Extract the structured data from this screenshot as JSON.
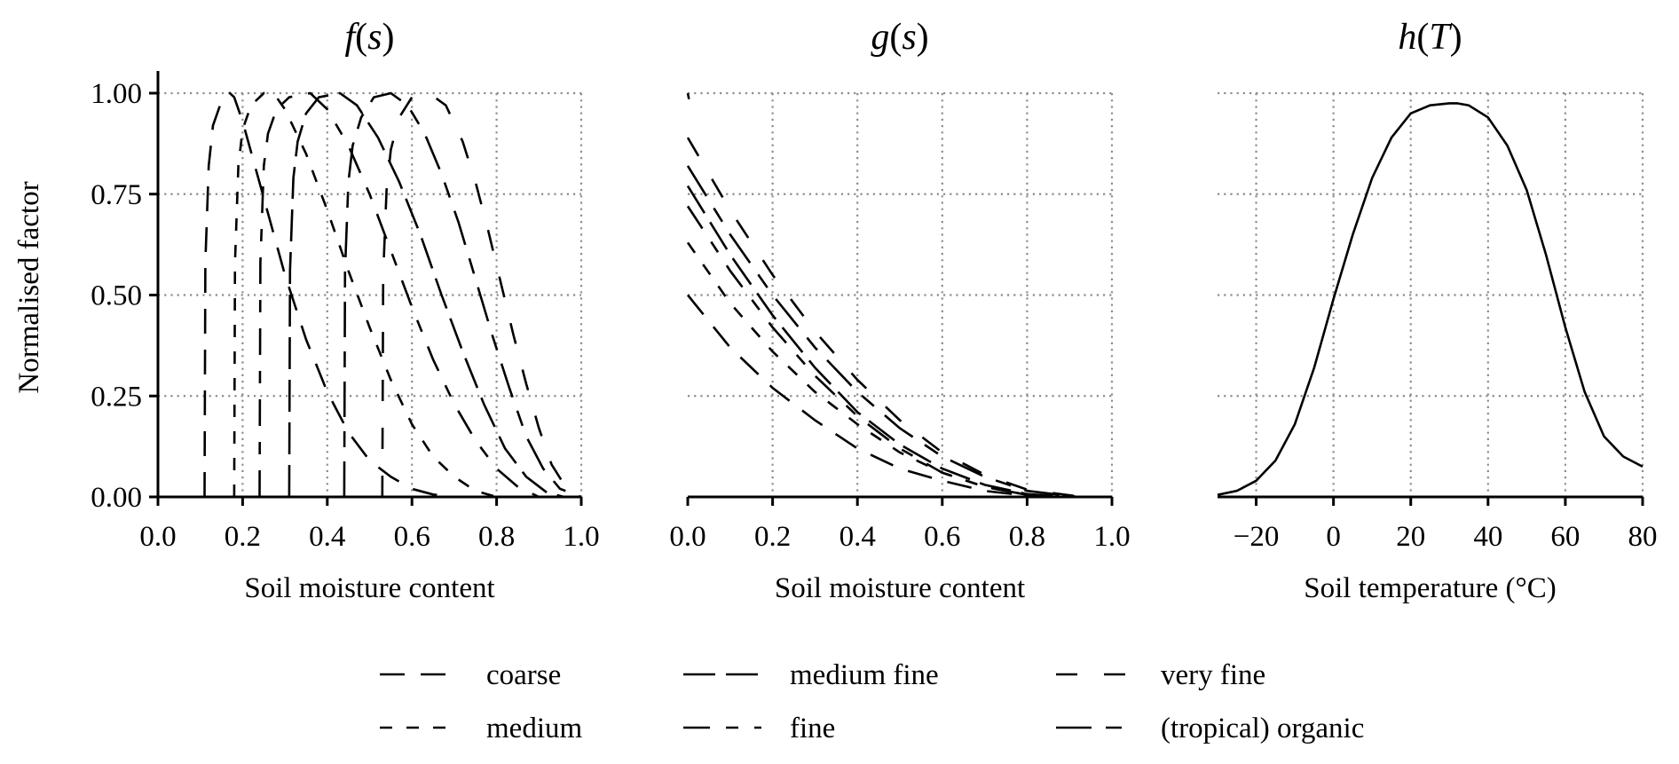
{
  "figure": {
    "y_axis_label": "Normalised factor",
    "legend": {
      "entries": [
        {
          "label": "coarse",
          "dash": "28 18"
        },
        {
          "label": "medium fine",
          "dash": "36 12"
        },
        {
          "label": "very fine",
          "dash": "24 30"
        },
        {
          "label": "medium",
          "dash": "14 16"
        },
        {
          "label": "fine",
          "dash": "30 18 14 18"
        },
        {
          "label": "(tropical) organic",
          "dash": "40 16 18 16"
        }
      ]
    }
  },
  "chart_data": [
    {
      "type": "line",
      "title": "f(s)",
      "title_func": "f",
      "title_arg": "s",
      "xlabel": "Soil moisture content",
      "ylabel": "Normalised factor",
      "xlim": [
        0.0,
        1.0
      ],
      "ylim": [
        0.0,
        1.0
      ],
      "xticks": [
        "0.0",
        "0.2",
        "0.4",
        "0.6",
        "0.8",
        "1.0"
      ],
      "yticks": [
        "0.00",
        "0.25",
        "0.50",
        "0.75",
        "1.00"
      ],
      "grid": true,
      "series": [
        {
          "name": "coarse",
          "dash": "28 18",
          "x": [
            0.11,
            0.112,
            0.12,
            0.13,
            0.15,
            0.17,
            0.18,
            0.2,
            0.25,
            0.3,
            0.35,
            0.4,
            0.45,
            0.5,
            0.55,
            0.6,
            0.65,
            0.7
          ],
          "y": [
            0.0,
            0.58,
            0.82,
            0.92,
            0.98,
            1.0,
            0.99,
            0.93,
            0.74,
            0.55,
            0.39,
            0.26,
            0.16,
            0.09,
            0.05,
            0.02,
            0.006,
            0.0
          ]
        },
        {
          "name": "medium",
          "dash": "14 16",
          "x": [
            0.18,
            0.182,
            0.19,
            0.2,
            0.22,
            0.25,
            0.28,
            0.3,
            0.35,
            0.4,
            0.45,
            0.5,
            0.55,
            0.6,
            0.65,
            0.7,
            0.75,
            0.8
          ],
          "y": [
            0.0,
            0.58,
            0.82,
            0.91,
            0.97,
            1.0,
            0.99,
            0.96,
            0.85,
            0.71,
            0.56,
            0.42,
            0.29,
            0.18,
            0.1,
            0.05,
            0.015,
            0.0
          ]
        },
        {
          "name": "fine",
          "dash": "30 18 14 18",
          "x": [
            0.24,
            0.242,
            0.25,
            0.26,
            0.28,
            0.31,
            0.36,
            0.4,
            0.45,
            0.5,
            0.55,
            0.6,
            0.65,
            0.7,
            0.75,
            0.8,
            0.85,
            0.9
          ],
          "y": [
            0.0,
            0.58,
            0.82,
            0.9,
            0.96,
            0.99,
            1.0,
            0.96,
            0.87,
            0.75,
            0.61,
            0.47,
            0.34,
            0.23,
            0.14,
            0.07,
            0.025,
            0.0
          ]
        },
        {
          "name": "medium fine",
          "dash": "36 12",
          "x": [
            0.31,
            0.312,
            0.32,
            0.33,
            0.35,
            0.38,
            0.43,
            0.47,
            0.52,
            0.57,
            0.62,
            0.67,
            0.72,
            0.77,
            0.82,
            0.87,
            0.92,
            0.96
          ],
          "y": [
            0.0,
            0.56,
            0.79,
            0.88,
            0.95,
            0.99,
            1.0,
            0.97,
            0.89,
            0.78,
            0.65,
            0.5,
            0.36,
            0.23,
            0.12,
            0.05,
            0.01,
            0.0
          ]
        },
        {
          "name": "(tropical) organic",
          "dash": "40 16 18 16",
          "x": [
            0.44,
            0.442,
            0.45,
            0.46,
            0.48,
            0.51,
            0.55,
            0.59,
            0.63,
            0.67,
            0.71,
            0.75,
            0.79,
            0.83,
            0.87,
            0.91,
            0.95,
            1.0
          ],
          "y": [
            0.0,
            0.56,
            0.78,
            0.87,
            0.94,
            0.99,
            1.0,
            0.97,
            0.9,
            0.8,
            0.68,
            0.54,
            0.4,
            0.27,
            0.15,
            0.07,
            0.02,
            0.0
          ]
        },
        {
          "name": "very fine",
          "dash": "24 30",
          "x": [
            0.53,
            0.532,
            0.54,
            0.55,
            0.57,
            0.6,
            0.64,
            0.68,
            0.72,
            0.75,
            0.78,
            0.81,
            0.84,
            0.87,
            0.9,
            0.93,
            0.96,
            1.0
          ],
          "y": [
            0.0,
            0.55,
            0.76,
            0.86,
            0.94,
            0.99,
            1.0,
            0.97,
            0.88,
            0.78,
            0.66,
            0.53,
            0.4,
            0.28,
            0.17,
            0.08,
            0.03,
            0.0
          ]
        }
      ]
    },
    {
      "type": "line",
      "title": "g(s)",
      "title_func": "g",
      "title_arg": "s",
      "xlabel": "Soil moisture content",
      "ylabel": "",
      "xlim": [
        0.0,
        1.0
      ],
      "ylim": [
        0.0,
        1.0
      ],
      "xticks": [
        "0.0",
        "0.2",
        "0.4",
        "0.6",
        "0.8",
        "1.0"
      ],
      "yticks": [],
      "grid": true,
      "series": [
        {
          "name": "coarse",
          "dash": "28 18",
          "x": [
            0.0,
            0.1,
            0.2,
            0.3,
            0.4,
            0.5,
            0.6,
            0.7,
            0.8,
            0.89
          ],
          "y": [
            0.5,
            0.37,
            0.27,
            0.19,
            0.12,
            0.07,
            0.04,
            0.015,
            0.003,
            0.0
          ]
        },
        {
          "name": "medium",
          "dash": "14 16",
          "x": [
            0.0,
            0.1,
            0.2,
            0.3,
            0.4,
            0.5,
            0.6,
            0.7,
            0.8,
            0.87
          ],
          "y": [
            0.63,
            0.48,
            0.36,
            0.26,
            0.18,
            0.11,
            0.06,
            0.025,
            0.005,
            0.0
          ]
        },
        {
          "name": "fine",
          "dash": "30 18 14 18",
          "x": [
            0.0,
            0.1,
            0.2,
            0.3,
            0.4,
            0.5,
            0.6,
            0.7,
            0.8,
            0.88
          ],
          "y": [
            0.72,
            0.56,
            0.42,
            0.3,
            0.2,
            0.12,
            0.06,
            0.025,
            0.005,
            0.0
          ]
        },
        {
          "name": "medium fine",
          "dash": "36 12",
          "x": [
            0.0,
            0.1,
            0.2,
            0.3,
            0.4,
            0.5,
            0.6,
            0.7,
            0.8,
            0.9
          ],
          "y": [
            0.77,
            0.6,
            0.45,
            0.32,
            0.21,
            0.13,
            0.07,
            0.03,
            0.007,
            0.0
          ]
        },
        {
          "name": "(tropical) organic",
          "dash": "40 16 18 16",
          "x": [
            0.0,
            0.1,
            0.2,
            0.3,
            0.4,
            0.5,
            0.6,
            0.7,
            0.8,
            0.92
          ],
          "y": [
            0.82,
            0.65,
            0.5,
            0.37,
            0.26,
            0.17,
            0.1,
            0.05,
            0.015,
            0.0
          ]
        },
        {
          "name": "very fine",
          "dash": "24 30",
          "x": [
            0.0,
            0.1,
            0.2,
            0.3,
            0.4,
            0.5,
            0.6,
            0.7,
            0.8,
            0.93
          ],
          "y": [
            0.89,
            0.71,
            0.55,
            0.41,
            0.29,
            0.19,
            0.11,
            0.055,
            0.018,
            0.0
          ]
        },
        {
          "name": "",
          "dash": "1 0",
          "x": [
            0.0,
            0.003
          ],
          "y": [
            1.0,
            0.985
          ]
        }
      ]
    },
    {
      "type": "line",
      "title": "h(T)",
      "title_func": "h",
      "title_arg": "T",
      "xlabel": "Soil temperature (°C)",
      "ylabel": "",
      "xlim": [
        -30,
        80
      ],
      "ylim": [
        0.0,
        1.0
      ],
      "xticks": [
        "−20",
        "0",
        "20",
        "40",
        "60",
        "80"
      ],
      "yticks": [],
      "grid": true,
      "series": [
        {
          "name": "",
          "dash": "",
          "x": [
            -30,
            -25,
            -20,
            -15,
            -10,
            -5,
            0,
            5,
            10,
            15,
            20,
            25,
            30,
            32,
            35,
            40,
            45,
            50,
            55,
            60,
            65,
            70,
            75,
            80
          ],
          "y": [
            0.005,
            0.015,
            0.04,
            0.09,
            0.18,
            0.32,
            0.49,
            0.65,
            0.79,
            0.89,
            0.95,
            0.97,
            0.975,
            0.975,
            0.97,
            0.94,
            0.87,
            0.76,
            0.6,
            0.42,
            0.26,
            0.15,
            0.1,
            0.075
          ]
        }
      ]
    }
  ]
}
